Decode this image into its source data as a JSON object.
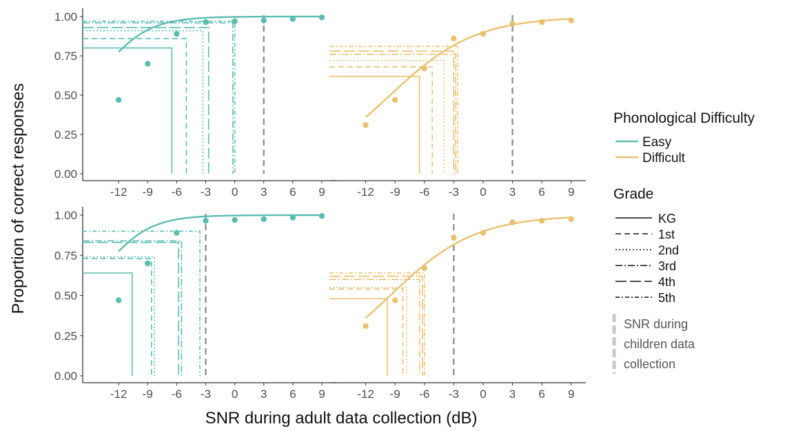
{
  "chart_data": {
    "type": "line",
    "xlabel": "SNR during adult data collection (dB)",
    "ylabel": "Proportion of correct responses",
    "x_ticks": [
      -12,
      -9,
      -6,
      -3,
      0,
      3,
      6,
      9
    ],
    "x_tick_labels": [
      "-12",
      "-9",
      "-6",
      "-3",
      "0",
      "3",
      "6",
      "9"
    ],
    "y_ticks": [
      0,
      0.25,
      0.5,
      0.75,
      1
    ],
    "y_tick_labels": [
      "0.00",
      "0.25",
      "0.50",
      "0.75",
      "1.00"
    ],
    "ylim": [
      0,
      1
    ],
    "grid": false,
    "colors": {
      "Easy": "#5bbcb0",
      "Difficult": "#e8c170",
      "child_snr": "#888888"
    },
    "legend": {
      "title": "Phonological Difficulty",
      "items": [
        "Easy",
        "Difficult"
      ],
      "grade_title": "Grade",
      "grades": [
        "KG",
        "1st",
        "2nd",
        "3rd",
        "4th",
        "5th"
      ],
      "child_snr_label": [
        "SNR during",
        "children data",
        "collection"
      ]
    },
    "panels": [
      {
        "difficulty": "Easy",
        "child_snr": 3,
        "points": {
          "x": [
            -12,
            -9,
            -6,
            -3,
            0,
            3,
            6,
            9
          ],
          "y": [
            0.47,
            0.7,
            0.89,
            0.965,
            0.97,
            0.975,
            0.985,
            0.995
          ]
        },
        "curve": {
          "lower": 0.35,
          "midpoint": -13.5,
          "slope": 0.42
        },
        "thresholds": [
          {
            "grade": "KG",
            "x": -6.5,
            "y": 0.8
          },
          {
            "grade": "1st",
            "x": -5.0,
            "y": 0.86
          },
          {
            "grade": "2nd",
            "x": -3.3,
            "y": 0.91
          },
          {
            "grade": "3rd",
            "x": -0.2,
            "y": 0.96
          },
          {
            "grade": "4th",
            "x": -2.7,
            "y": 0.93
          },
          {
            "grade": "5th",
            "x": 0.0,
            "y": 0.97
          }
        ]
      },
      {
        "difficulty": "Difficult",
        "child_snr": 3,
        "points": {
          "x": [
            -12,
            -9,
            -6,
            -3,
            0,
            3,
            6,
            9
          ],
          "y": [
            0.31,
            0.47,
            0.67,
            0.86,
            0.89,
            0.955,
            0.965,
            0.975
          ]
        },
        "curve": {
          "lower": 0.0,
          "midpoint": -9.5,
          "slope": 0.23
        },
        "thresholds": [
          {
            "grade": "KG",
            "x": -6.5,
            "y": 0.62
          },
          {
            "grade": "1st",
            "x": -5.2,
            "y": 0.68
          },
          {
            "grade": "2nd",
            "x": -4.0,
            "y": 0.72
          },
          {
            "grade": "3rd",
            "x": -2.8,
            "y": 0.76
          },
          {
            "grade": "4th",
            "x": -3.0,
            "y": 0.78
          },
          {
            "grade": "5th",
            "x": -2.6,
            "y": 0.81
          }
        ]
      },
      {
        "difficulty": "Easy",
        "child_snr": -3,
        "points": {
          "x": [
            -12,
            -9,
            -6,
            -3,
            0,
            3,
            6,
            9
          ],
          "y": [
            0.47,
            0.7,
            0.89,
            0.965,
            0.97,
            0.975,
            0.985,
            0.995
          ]
        },
        "curve": {
          "lower": 0.35,
          "midpoint": -13.5,
          "slope": 0.42
        },
        "thresholds": [
          {
            "grade": "KG",
            "x": -10.6,
            "y": 0.64
          },
          {
            "grade": "1st",
            "x": -8.6,
            "y": 0.73
          },
          {
            "grade": "2nd",
            "x": -8.3,
            "y": 0.74
          },
          {
            "grade": "3rd",
            "x": -5.5,
            "y": 0.84
          },
          {
            "grade": "4th",
            "x": -5.8,
            "y": 0.83
          },
          {
            "grade": "5th",
            "x": -3.6,
            "y": 0.9
          }
        ]
      },
      {
        "difficulty": "Difficult",
        "child_snr": -3,
        "points": {
          "x": [
            -12,
            -9,
            -6,
            -3,
            0,
            3,
            6,
            9
          ],
          "y": [
            0.31,
            0.47,
            0.67,
            0.86,
            0.89,
            0.955,
            0.965,
            0.975
          ]
        },
        "curve": {
          "lower": 0.0,
          "midpoint": -9.5,
          "slope": 0.23
        },
        "thresholds": [
          {
            "grade": "KG",
            "x": -9.8,
            "y": 0.48
          },
          {
            "grade": "1st",
            "x": -8.2,
            "y": 0.54
          },
          {
            "grade": "2nd",
            "x": -7.8,
            "y": 0.55
          },
          {
            "grade": "3rd",
            "x": -6.5,
            "y": 0.6
          },
          {
            "grade": "4th",
            "x": -6.2,
            "y": 0.62
          },
          {
            "grade": "5th",
            "x": -6.0,
            "y": 0.64
          }
        ]
      }
    ]
  }
}
